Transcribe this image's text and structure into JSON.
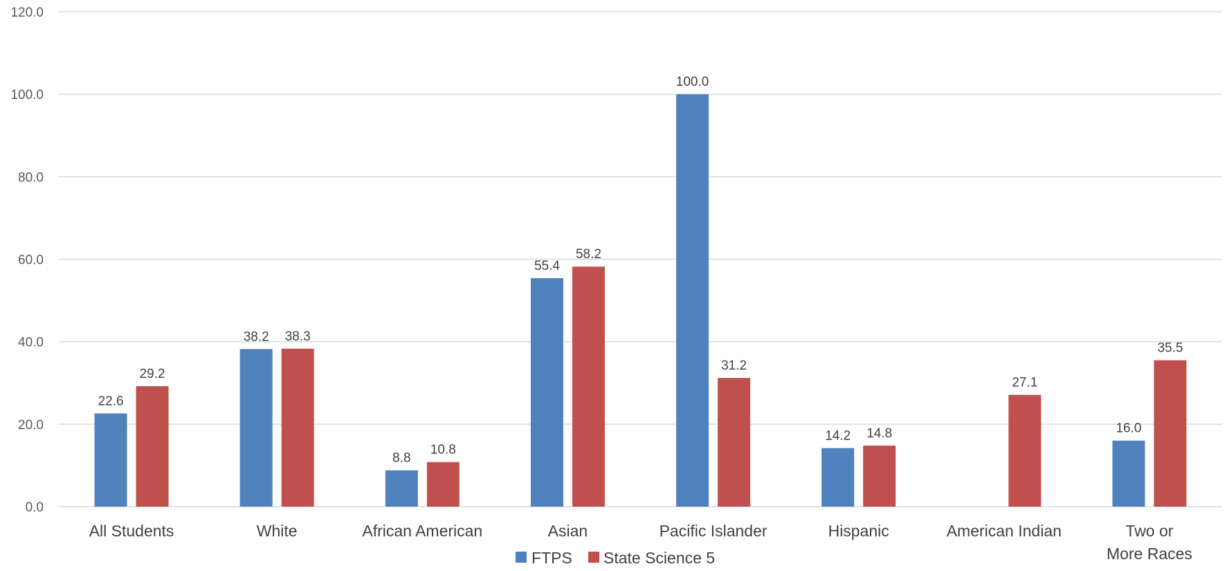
{
  "chart_data": {
    "type": "bar",
    "title": "",
    "xlabel": "",
    "ylabel": "",
    "ylim": [
      0,
      120
    ],
    "yticks": [
      "0.0",
      "20.0",
      "40.0",
      "60.0",
      "80.0",
      "100.0",
      "120.0"
    ],
    "grid": true,
    "legend_position": "bottom",
    "categories": [
      "All Students",
      "White",
      "African American",
      "Asian",
      "Pacific Islander",
      "Hispanic",
      "American Indian",
      "Two or More Races"
    ],
    "series": [
      {
        "name": "FTPS",
        "color": "#4f81bd",
        "values": [
          22.6,
          38.2,
          8.8,
          55.4,
          100.0,
          14.2,
          null,
          16.0
        ],
        "labels": [
          "22.6",
          "38.2",
          "8.8",
          "55.4",
          "100.0",
          "14.2",
          "",
          "16.0"
        ]
      },
      {
        "name": "State Science 5",
        "color": "#c0504d",
        "values": [
          29.2,
          38.3,
          10.8,
          58.2,
          31.2,
          14.8,
          27.1,
          35.5
        ],
        "labels": [
          "29.2",
          "38.3",
          "10.8",
          "58.2",
          "31.2",
          "14.8",
          "27.1",
          "35.5"
        ]
      }
    ]
  }
}
